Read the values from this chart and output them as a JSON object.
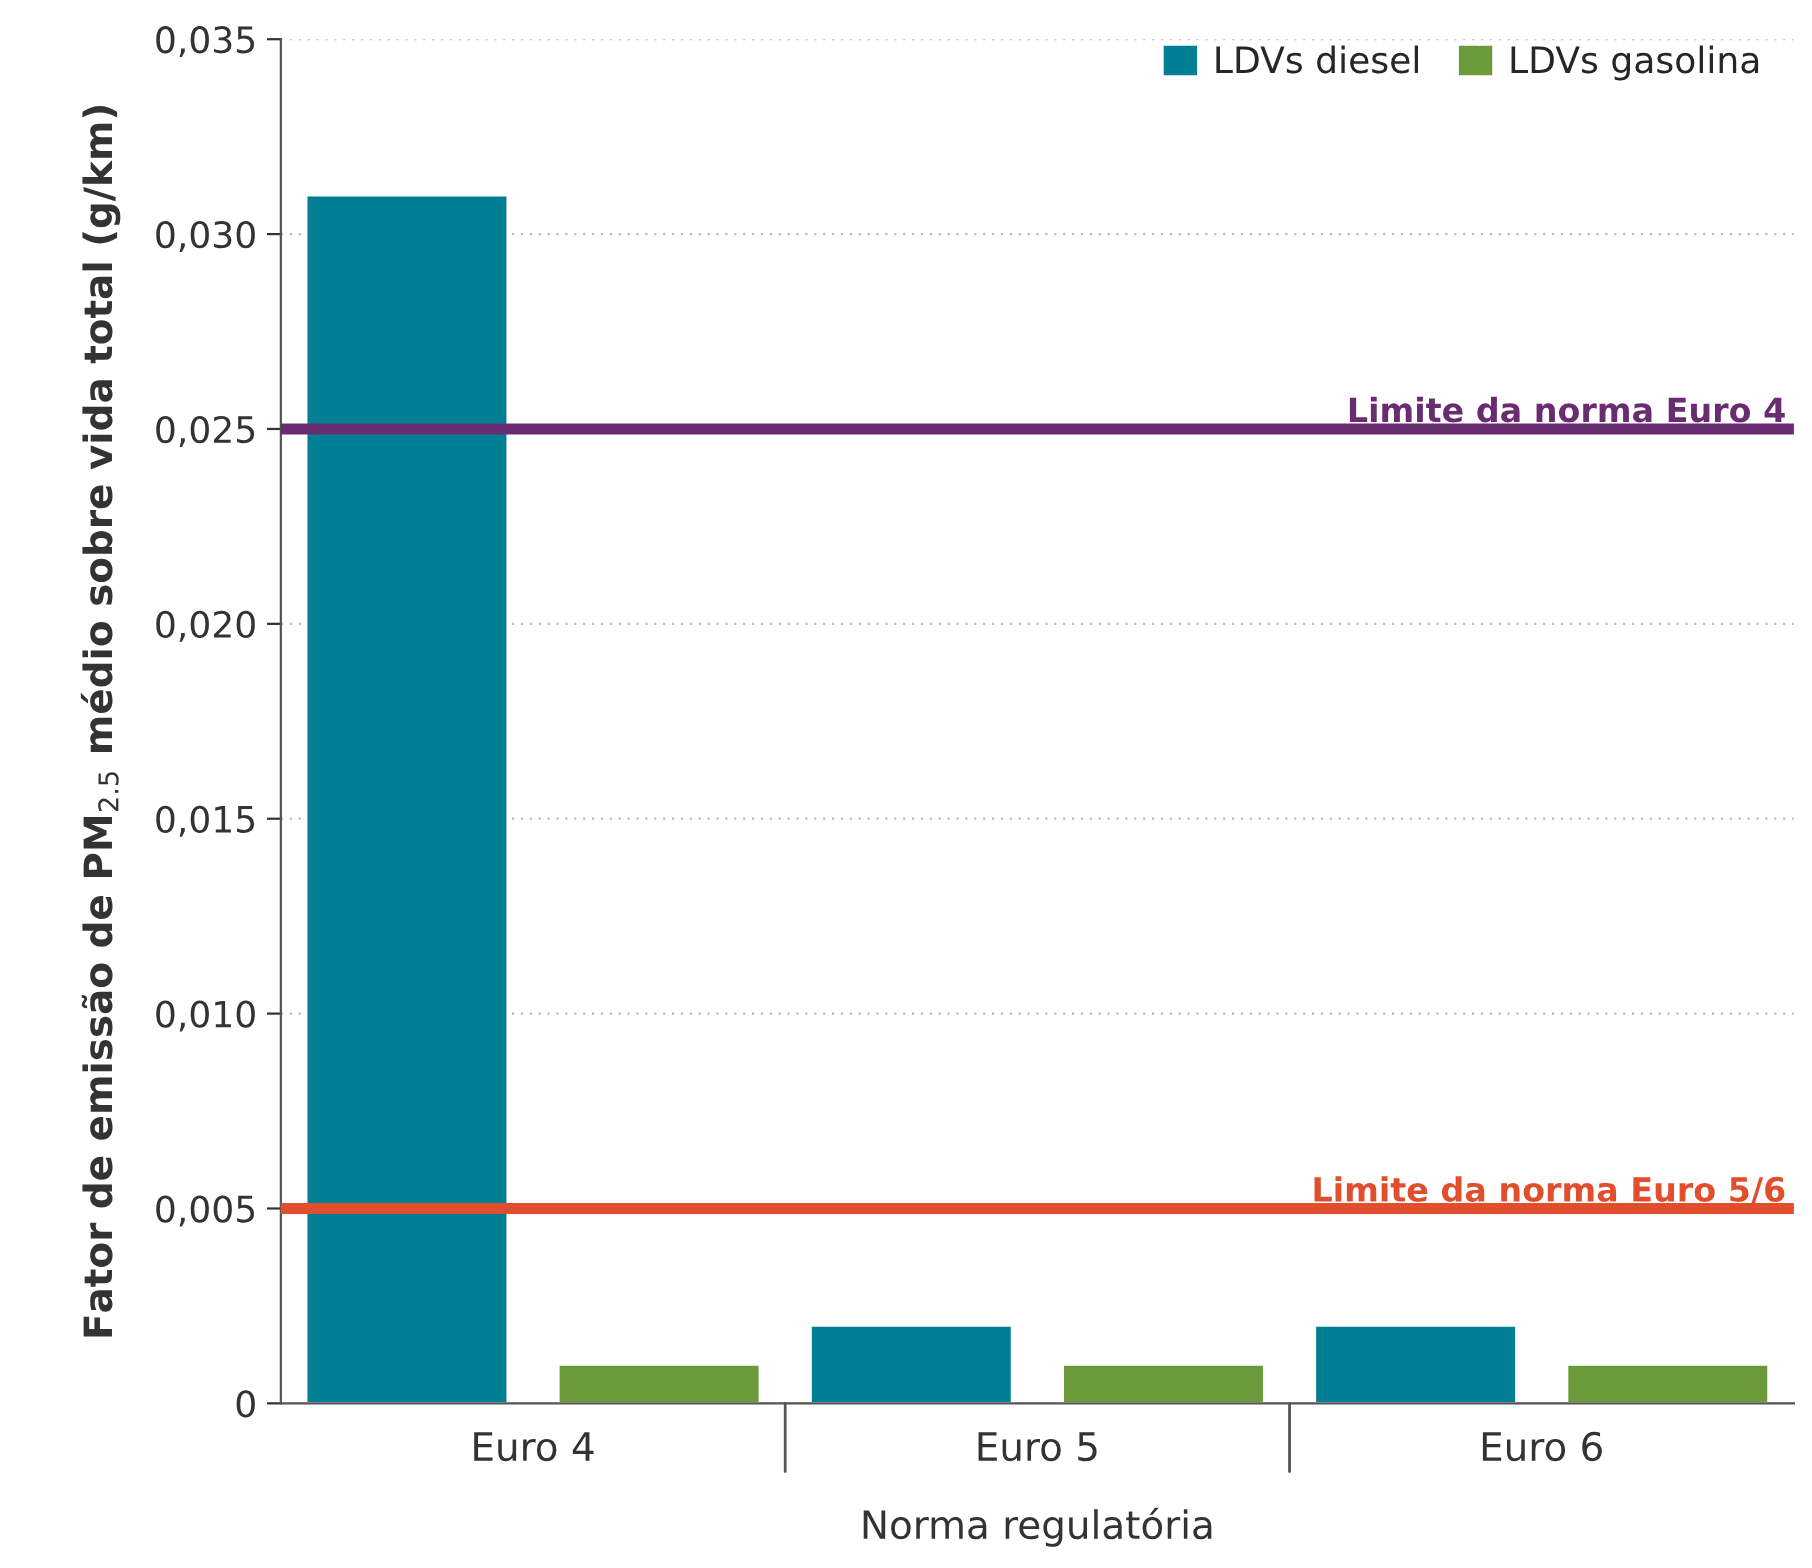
{
  "chart_data": {
    "type": "bar",
    "xlabel": "Norma regulatória",
    "ylabel": "Fator de emissão de PM$_{2.5}$ médio sobre vida total (g/km)",
    "categories": [
      "Euro 4",
      "Euro 5",
      "Euro 6"
    ],
    "series": [
      {
        "name": "LDVs diesel",
        "color": "#007e94",
        "values": [
          0.031,
          0.002,
          0.002
        ]
      },
      {
        "name": "LDVs gasolina",
        "color": "#6a9a3a",
        "values": [
          0.001,
          0.001,
          0.001
        ]
      }
    ],
    "ylim": [
      0,
      0.035
    ],
    "yticks": [
      0,
      {
        "value": 0.005,
        "label": "0,005"
      },
      {
        "value": 0.01,
        "label": "0,010"
      },
      {
        "value": 0.015,
        "label": "0,015"
      },
      {
        "value": 0.02,
        "label": "0,020"
      },
      {
        "value": 0.025,
        "label": "0,025"
      },
      {
        "value": 0.03,
        "label": "0,030"
      },
      {
        "value": 0.035,
        "label": "0,035"
      }
    ],
    "ref_lines": [
      {
        "axis": "y",
        "value": 0.025,
        "label": "Limite da norma Euro 4",
        "color": "#6a2c70"
      },
      {
        "axis": "y",
        "value": 0.005,
        "label": "Limite da norma Euro 5/6",
        "color": "#e04e2c"
      }
    ],
    "grid": "y",
    "legend": "top right"
  }
}
